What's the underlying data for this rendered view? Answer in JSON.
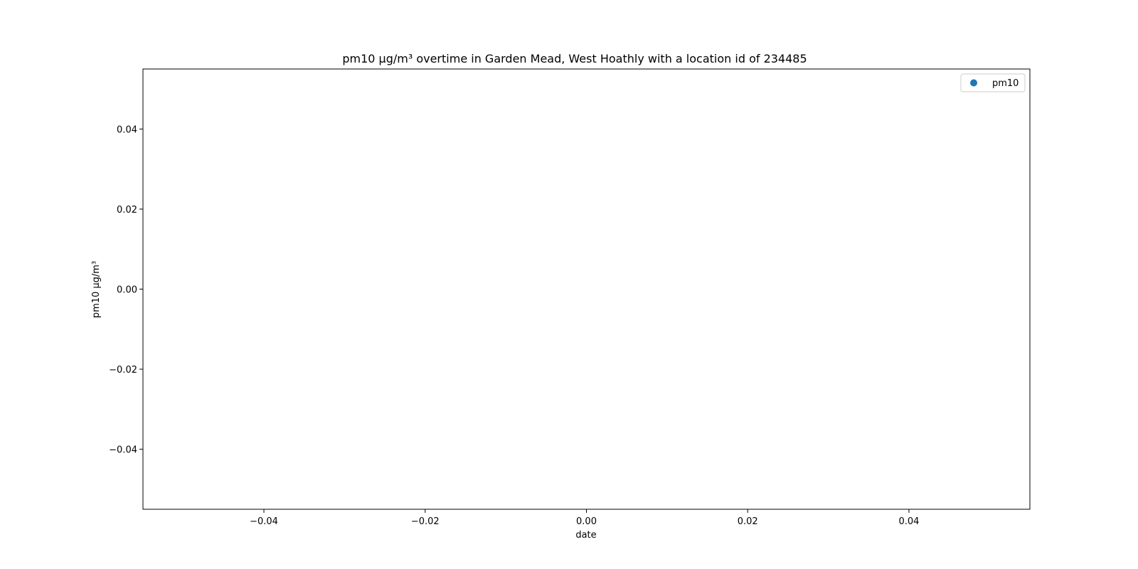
{
  "chart_data": {
    "type": "scatter",
    "title": "pm10 µg/m³ overtime in Garden Mead, West Hoathly with a location id of 234485",
    "xlabel": "date",
    "ylabel": "pm10 µg/m³",
    "xlim": [
      -0.055,
      0.055
    ],
    "ylim": [
      -0.055,
      0.055
    ],
    "xticks": [
      -0.04,
      -0.02,
      0.0,
      0.02,
      0.04
    ],
    "xtick_labels": [
      "−0.04",
      "−0.02",
      "0.00",
      "0.02",
      "0.04"
    ],
    "yticks": [
      -0.04,
      -0.02,
      0.0,
      0.02,
      0.04
    ],
    "ytick_labels": [
      "−0.04",
      "−0.02",
      "0.00",
      "0.02",
      "0.04"
    ],
    "grid": false,
    "legend_position": "top-right",
    "series": [
      {
        "name": "pm10",
        "color": "#1f77b4",
        "points": []
      }
    ]
  }
}
